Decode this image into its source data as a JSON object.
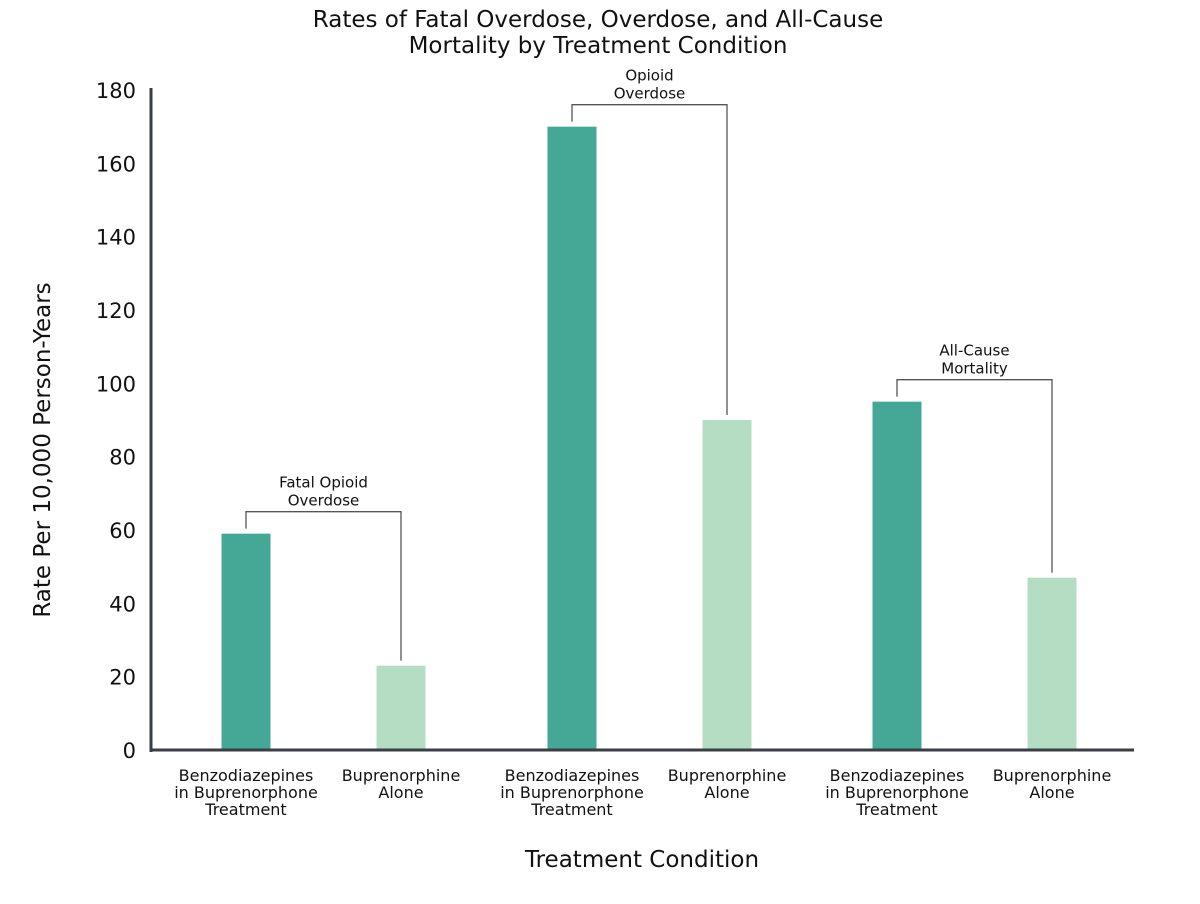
{
  "chart_data": {
    "type": "bar",
    "title_lines": [
      "Rates of Fatal Overdose, Overdose, and All-Cause",
      "Mortality by Treatment Condition"
    ],
    "xlabel": "Treatment Condition",
    "ylabel": "Rate Per 10,000 Person-Years",
    "ylim": [
      0,
      180
    ],
    "yticks": [
      0,
      20,
      40,
      60,
      80,
      100,
      120,
      140,
      160,
      180
    ],
    "grid": false,
    "legend": "none",
    "colors": {
      "benzo": "#45a795",
      "bup": "#b4ddc4",
      "axis": "#3b3f44",
      "bracket": "#555555"
    },
    "groups": [
      {
        "label_lines": [
          "Fatal Opioid",
          "Overdose"
        ],
        "bars": [
          {
            "label_lines": [
              "Benzodiazepines",
              "in Buprenorphone",
              "Treatment"
            ],
            "value": 59,
            "series": "benzo"
          },
          {
            "label_lines": [
              "Buprenorphine",
              "Alone"
            ],
            "value": 23,
            "series": "bup"
          }
        ]
      },
      {
        "label_lines": [
          "Opioid",
          "Overdose"
        ],
        "bars": [
          {
            "label_lines": [
              "Benzodiazepines",
              "in Buprenorphone",
              "Treatment"
            ],
            "value": 170,
            "series": "benzo"
          },
          {
            "label_lines": [
              "Buprenorphine",
              "Alone"
            ],
            "value": 90,
            "series": "bup"
          }
        ]
      },
      {
        "label_lines": [
          "All-Cause",
          "Mortality"
        ],
        "bars": [
          {
            "label_lines": [
              "Benzodiazepines",
              "in Buprenorphone",
              "Treatment"
            ],
            "value": 95,
            "series": "benzo"
          },
          {
            "label_lines": [
              "Buprenorphine",
              "Alone"
            ],
            "value": 47,
            "series": "bup"
          }
        ]
      }
    ]
  }
}
